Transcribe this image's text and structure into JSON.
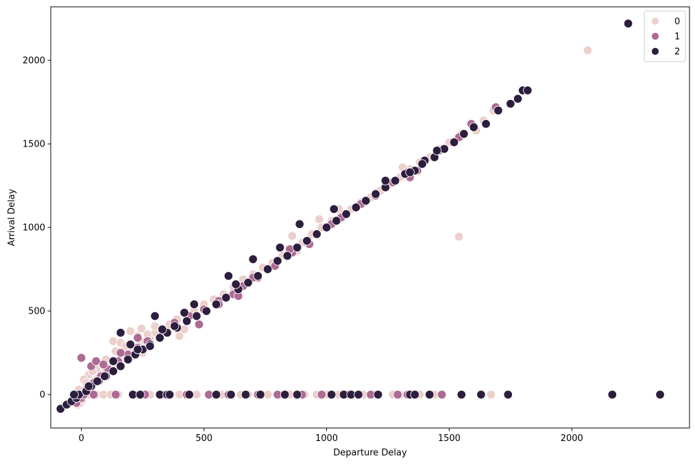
{
  "chart_data": {
    "type": "scatter",
    "xlabel": "Departure Delay",
    "ylabel": "Arrival Delay",
    "xlim": [
      -125,
      2480
    ],
    "ylim": [
      -200,
      2320
    ],
    "xticks": [
      0,
      500,
      1000,
      1500,
      2000
    ],
    "yticks": [
      0,
      500,
      1000,
      1500,
      2000
    ],
    "grid": false,
    "legend": {
      "placement": "top-right",
      "title": ""
    },
    "series": [
      {
        "name": "0",
        "color": "#ecd0cc",
        "points": [
          [
            -30,
            -40
          ],
          [
            -15,
            -60
          ],
          [
            -5,
            -50
          ],
          [
            5,
            -30
          ],
          [
            10,
            -10
          ],
          [
            0,
            10
          ],
          [
            15,
            20
          ],
          [
            25,
            40
          ],
          [
            40,
            60
          ],
          [
            55,
            80
          ],
          [
            70,
            100
          ],
          [
            85,
            120
          ],
          [
            100,
            140
          ],
          [
            120,
            160
          ],
          [
            140,
            190
          ],
          [
            160,
            210
          ],
          [
            180,
            230
          ],
          [
            200,
            250
          ],
          [
            220,
            280
          ],
          [
            240,
            300
          ],
          [
            260,
            320
          ],
          [
            280,
            340
          ],
          [
            300,
            370
          ],
          [
            330,
            390
          ],
          [
            360,
            420
          ],
          [
            390,
            450
          ],
          [
            420,
            480
          ],
          [
            460,
            500
          ],
          [
            500,
            540
          ],
          [
            540,
            570
          ],
          [
            580,
            600
          ],
          [
            620,
            640
          ],
          [
            660,
            690
          ],
          [
            700,
            720
          ],
          [
            740,
            760
          ],
          [
            780,
            790
          ],
          [
            820,
            830
          ],
          [
            860,
            870
          ],
          [
            900,
            910
          ],
          [
            940,
            960
          ],
          [
            980,
            1000
          ],
          [
            1020,
            1040
          ],
          [
            1060,
            1080
          ],
          [
            1100,
            1110
          ],
          [
            1140,
            1150
          ],
          [
            1180,
            1180
          ],
          [
            1220,
            1220
          ],
          [
            1260,
            1260
          ],
          [
            1300,
            1300
          ],
          [
            1340,
            1350
          ],
          [
            1380,
            1390
          ],
          [
            1420,
            1420
          ],
          [
            1460,
            1470
          ],
          [
            1500,
            1510
          ],
          [
            1550,
            1560
          ],
          [
            1600,
            1600
          ],
          [
            1640,
            1640
          ],
          [
            1680,
            1700
          ],
          [
            130,
            320
          ],
          [
            160,
            310
          ],
          [
            200,
            380
          ],
          [
            230,
            350
          ],
          [
            245,
            395
          ],
          [
            270,
            360
          ],
          [
            300,
            410
          ],
          [
            400,
            350
          ],
          [
            420,
            390
          ],
          [
            140,
            260
          ],
          [
            180,
            290
          ],
          [
            210,
            230
          ],
          [
            250,
            250
          ],
          [
            100,
            210
          ],
          [
            60,
            150
          ],
          [
            30,
            120
          ],
          [
            10,
            90
          ],
          [
            -10,
            30
          ],
          [
            20,
            70
          ],
          [
            45,
            140
          ],
          [
            75,
            90
          ],
          [
            860,
            950
          ],
          [
            880,
            860
          ],
          [
            970,
            1050
          ],
          [
            1050,
            1110
          ],
          [
            1310,
            1360
          ],
          [
            1440,
            1420
          ],
          [
            1610,
            1580
          ],
          [
            1540,
            945
          ],
          [
            2065,
            2060
          ],
          [
            0,
            0
          ],
          [
            30,
            0
          ],
          [
            60,
            0
          ],
          [
            90,
            0
          ],
          [
            120,
            0
          ],
          [
            150,
            0
          ],
          [
            280,
            0
          ],
          [
            345,
            0
          ],
          [
            400,
            0
          ],
          [
            470,
            0
          ],
          [
            520,
            0
          ],
          [
            570,
            0
          ],
          [
            650,
            0
          ],
          [
            680,
            0
          ],
          [
            760,
            0
          ],
          [
            810,
            0
          ],
          [
            850,
            0
          ],
          [
            910,
            0
          ],
          [
            960,
            0
          ],
          [
            1000,
            0
          ],
          [
            1050,
            0
          ],
          [
            1100,
            0
          ],
          [
            1150,
            0
          ],
          [
            1200,
            0
          ],
          [
            1270,
            0
          ],
          [
            1300,
            0
          ],
          [
            1380,
            0
          ],
          [
            1440,
            0
          ],
          [
            1670,
            0
          ]
        ]
      },
      {
        "name": "1",
        "color": "#ad6a93",
        "points": [
          [
            -20,
            -50
          ],
          [
            0,
            -20
          ],
          [
            10,
            0
          ],
          [
            20,
            30
          ],
          [
            50,
            70
          ],
          [
            80,
            110
          ],
          [
            110,
            150
          ],
          [
            150,
            200
          ],
          [
            190,
            240
          ],
          [
            230,
            280
          ],
          [
            270,
            320
          ],
          [
            330,
            380
          ],
          [
            380,
            430
          ],
          [
            440,
            470
          ],
          [
            500,
            510
          ],
          [
            560,
            560
          ],
          [
            620,
            600
          ],
          [
            660,
            650
          ],
          [
            720,
            700
          ],
          [
            790,
            770
          ],
          [
            860,
            850
          ],
          [
            920,
            910
          ],
          [
            960,
            960
          ],
          [
            1020,
            1020
          ],
          [
            1060,
            1060
          ],
          [
            1140,
            1140
          ],
          [
            1200,
            1190
          ],
          [
            1270,
            1270
          ],
          [
            1330,
            1330
          ],
          [
            1400,
            1400
          ],
          [
            1460,
            1460
          ],
          [
            1540,
            1540
          ],
          [
            1590,
            1620
          ],
          [
            1690,
            1720
          ],
          [
            0,
            220
          ],
          [
            40,
            170
          ],
          [
            60,
            200
          ],
          [
            90,
            180
          ],
          [
            160,
            250
          ],
          [
            230,
            340
          ],
          [
            480,
            420
          ],
          [
            560,
            540
          ],
          [
            640,
            590
          ],
          [
            700,
            700
          ],
          [
            850,
            870
          ],
          [
            930,
            900
          ],
          [
            1340,
            1300
          ],
          [
            1370,
            1340
          ],
          [
            50,
            0
          ],
          [
            140,
            0
          ],
          [
            260,
            0
          ],
          [
            330,
            0
          ],
          [
            430,
            0
          ],
          [
            520,
            0
          ],
          [
            600,
            0
          ],
          [
            720,
            0
          ],
          [
            800,
            0
          ],
          [
            900,
            0
          ],
          [
            980,
            0
          ],
          [
            1090,
            0
          ],
          [
            1180,
            0
          ],
          [
            1290,
            0
          ],
          [
            1330,
            0
          ],
          [
            1470,
            0
          ]
        ]
      },
      {
        "name": "2",
        "color": "#2d1e3e",
        "points": [
          [
            -85,
            -85
          ],
          [
            -60,
            -60
          ],
          [
            -40,
            -40
          ],
          [
            -20,
            -20
          ],
          [
            -10,
            0
          ],
          [
            20,
            20
          ],
          [
            40,
            50
          ],
          [
            70,
            80
          ],
          [
            100,
            110
          ],
          [
            130,
            140
          ],
          [
            160,
            170
          ],
          [
            190,
            210
          ],
          [
            220,
            240
          ],
          [
            250,
            270
          ],
          [
            280,
            300
          ],
          [
            320,
            340
          ],
          [
            350,
            370
          ],
          [
            390,
            400
          ],
          [
            430,
            440
          ],
          [
            470,
            470
          ],
          [
            510,
            500
          ],
          [
            550,
            540
          ],
          [
            590,
            580
          ],
          [
            640,
            630
          ],
          [
            680,
            670
          ],
          [
            720,
            710
          ],
          [
            760,
            750
          ],
          [
            800,
            800
          ],
          [
            840,
            830
          ],
          [
            880,
            880
          ],
          [
            920,
            920
          ],
          [
            960,
            960
          ],
          [
            1000,
            1000
          ],
          [
            1040,
            1040
          ],
          [
            1080,
            1080
          ],
          [
            1120,
            1120
          ],
          [
            1160,
            1160
          ],
          [
            1200,
            1200
          ],
          [
            1240,
            1240
          ],
          [
            1280,
            1280
          ],
          [
            1320,
            1320
          ],
          [
            1360,
            1340
          ],
          [
            1400,
            1400
          ],
          [
            1440,
            1420
          ],
          [
            1480,
            1470
          ],
          [
            1520,
            1510
          ],
          [
            1560,
            1560
          ],
          [
            1600,
            1600
          ],
          [
            1650,
            1620
          ],
          [
            1700,
            1700
          ],
          [
            1750,
            1740
          ],
          [
            1780,
            1770
          ],
          [
            1800,
            1820
          ],
          [
            1820,
            1820
          ],
          [
            30,
            50
          ],
          [
            65,
            80
          ],
          [
            95,
            110
          ],
          [
            130,
            200
          ],
          [
            160,
            370
          ],
          [
            200,
            300
          ],
          [
            230,
            270
          ],
          [
            280,
            290
          ],
          [
            300,
            470
          ],
          [
            330,
            390
          ],
          [
            380,
            410
          ],
          [
            420,
            490
          ],
          [
            460,
            540
          ],
          [
            600,
            710
          ],
          [
            630,
            660
          ],
          [
            700,
            810
          ],
          [
            810,
            880
          ],
          [
            890,
            1020
          ],
          [
            1030,
            1110
          ],
          [
            1120,
            1120
          ],
          [
            1240,
            1280
          ],
          [
            1340,
            1330
          ],
          [
            1390,
            1380
          ],
          [
            1450,
            1460
          ],
          [
            1650,
            1620
          ],
          [
            2230,
            2220
          ],
          [
            -30,
            0
          ],
          [
            210,
            0
          ],
          [
            240,
            0
          ],
          [
            320,
            0
          ],
          [
            350,
            0
          ],
          [
            360,
            0
          ],
          [
            440,
            0
          ],
          [
            550,
            0
          ],
          [
            610,
            0
          ],
          [
            670,
            0
          ],
          [
            730,
            0
          ],
          [
            830,
            0
          ],
          [
            880,
            0
          ],
          [
            1020,
            0
          ],
          [
            1070,
            0
          ],
          [
            1100,
            0
          ],
          [
            1130,
            0
          ],
          [
            1210,
            0
          ],
          [
            1340,
            0
          ],
          [
            1360,
            0
          ],
          [
            1420,
            0
          ],
          [
            1550,
            0
          ],
          [
            1630,
            0
          ],
          [
            1740,
            0
          ],
          [
            2165,
            0
          ],
          [
            2360,
            0
          ]
        ]
      }
    ]
  }
}
